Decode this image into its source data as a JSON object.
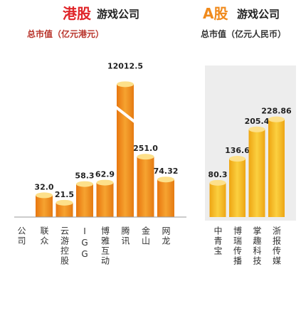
{
  "chart_data": [
    {
      "type": "bar",
      "title": "港股",
      "title_suffix": "游戏公司",
      "subtitle": "总市值（亿元港元）",
      "row_label": "公司",
      "categories": [
        "联众",
        "云游控股",
        "IGG",
        "博雅互动",
        "腾讯",
        "金山",
        "网龙"
      ],
      "values": [
        32.0,
        21.5,
        58.3,
        62.9,
        12012.5,
        251.0,
        74.32
      ],
      "value_labels": [
        "32.0",
        "21.5",
        "58.3",
        "62.9",
        "12012.5",
        "251.0",
        "74.32"
      ],
      "color": "#f0921e",
      "log_scale": true
    },
    {
      "type": "bar",
      "title": "A股",
      "title_suffix": "游戏公司",
      "subtitle": "总市值（亿元人民币）",
      "categories": [
        "中青宝",
        "博瑞传播",
        "掌趣科技",
        "浙报传媒"
      ],
      "values": [
        80.3,
        136.6,
        205.4,
        228.86
      ],
      "value_labels": [
        "80.3",
        "136.6",
        "205.4",
        "228.86"
      ],
      "color": "#f5b81c",
      "log_scale": false
    }
  ]
}
